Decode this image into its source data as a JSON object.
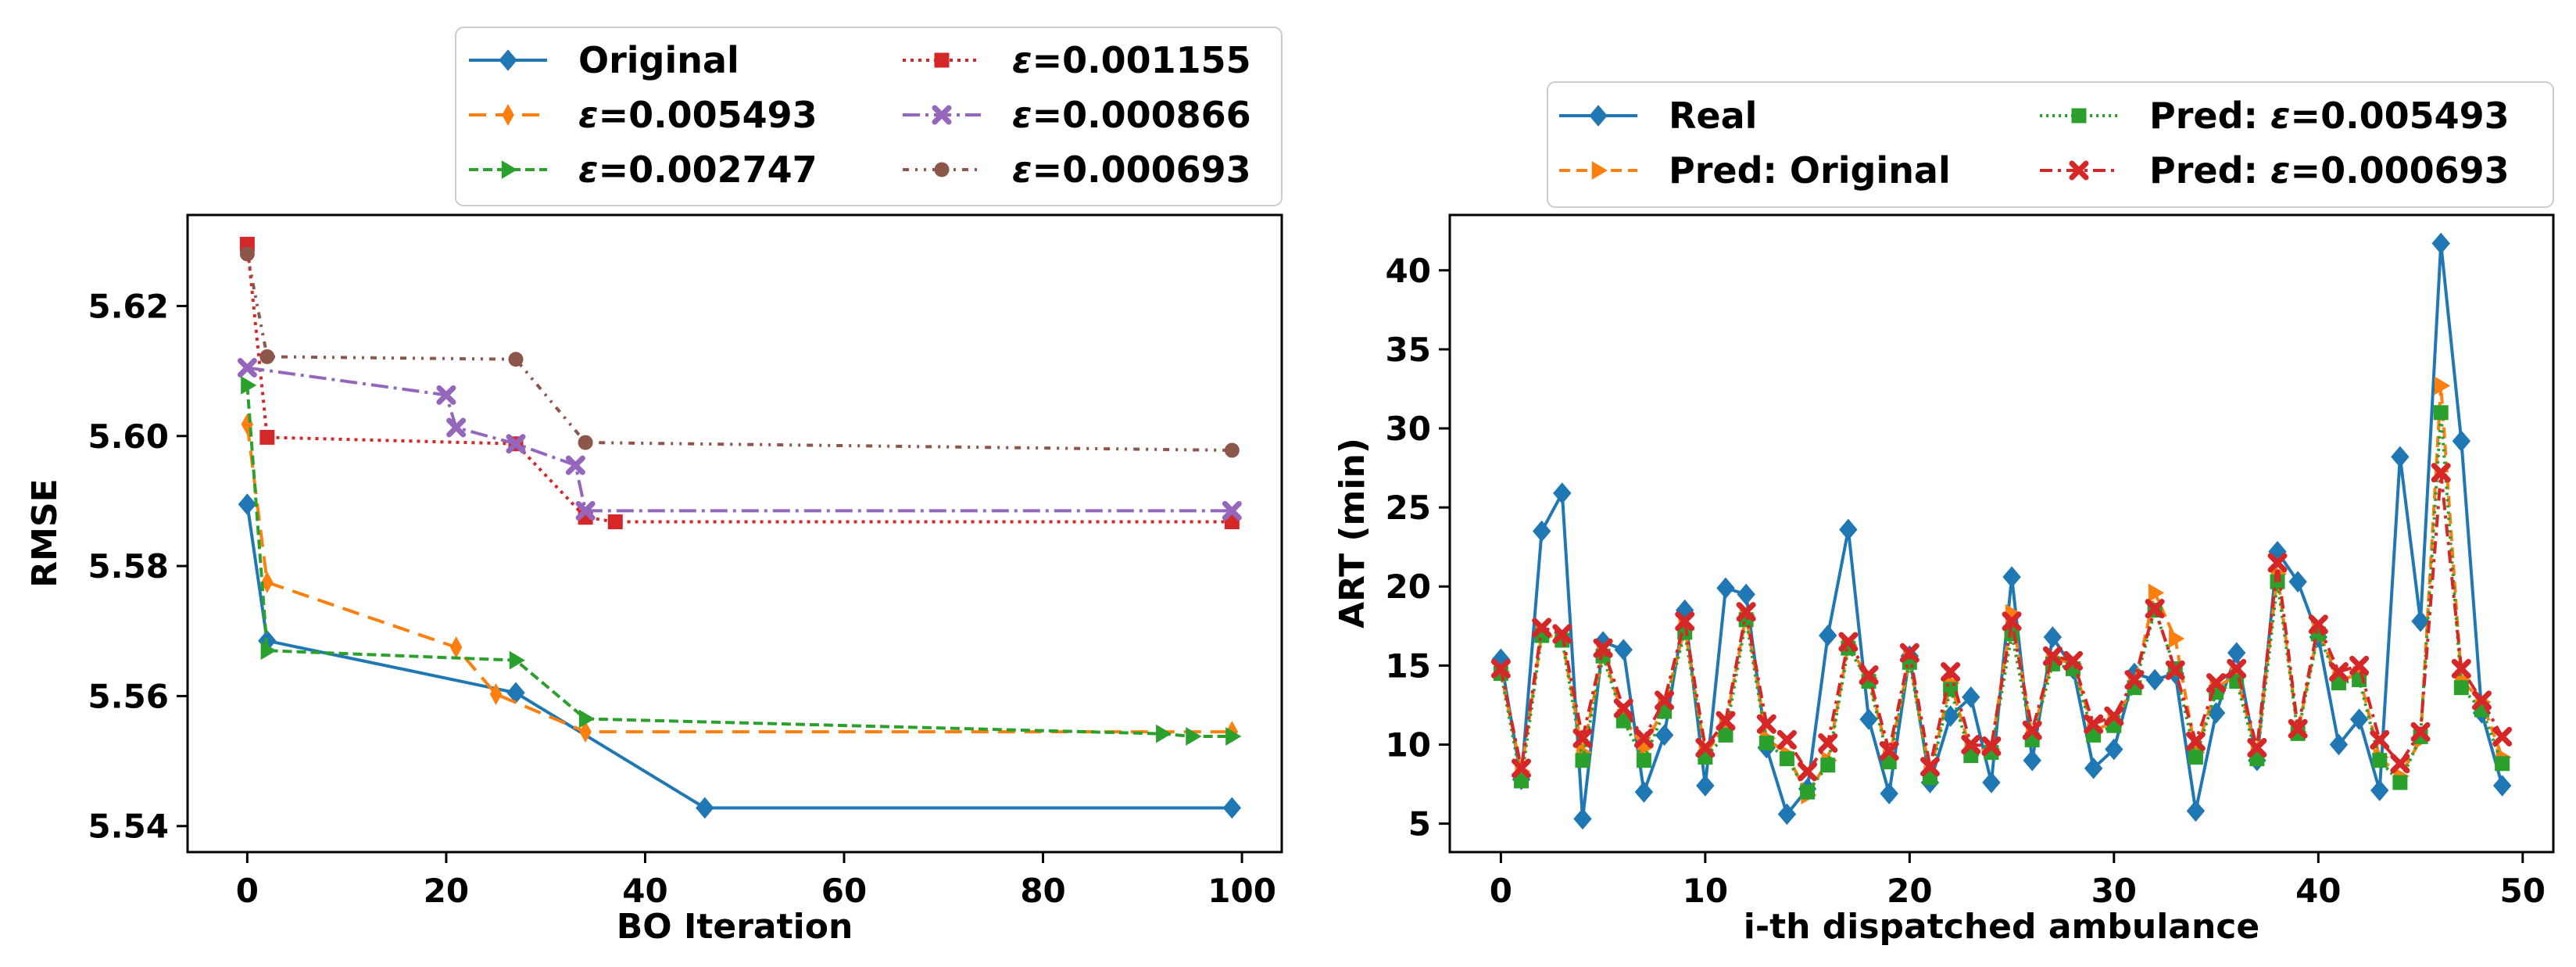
{
  "chart_data": [
    {
      "type": "line",
      "title": "",
      "xlabel": "BO Iteration",
      "ylabel": "RMSE",
      "xlim": [
        -6,
        104
      ],
      "ylim": [
        5.536,
        5.634
      ],
      "xticks": [
        0,
        20,
        40,
        60,
        80,
        100
      ],
      "yticks": [
        5.54,
        5.56,
        5.58,
        5.6,
        5.62
      ],
      "legend_position": "top",
      "legend_columns": 2,
      "series": [
        {
          "name": "Original",
          "label": "Original",
          "color": "#1f77b4",
          "dash": "",
          "marker": "diamond",
          "x": [
            0,
            2,
            27,
            46,
            99
          ],
          "y": [
            5.5895,
            5.5685,
            5.5605,
            5.5428,
            5.5428
          ]
        },
        {
          "name": "eps_0.005493",
          "label_symbol": "ε",
          "label_value": "=0.005493",
          "color": "#ff7f0e",
          "dash": "22,12",
          "marker": "thin_diamond",
          "x": [
            0,
            2,
            21,
            25,
            34,
            99
          ],
          "y": [
            5.6018,
            5.5775,
            5.5675,
            5.5603,
            5.5545,
            5.5545
          ]
        },
        {
          "name": "eps_0.002747",
          "label_symbol": "ε",
          "label_value": "=0.002747",
          "color": "#2ca02c",
          "dash": "12,6",
          "marker": "triangle_right",
          "x": [
            0,
            2,
            27,
            34,
            92,
            95,
            99
          ],
          "y": [
            5.6078,
            5.567,
            5.5655,
            5.5565,
            5.5542,
            5.5538,
            5.5538
          ]
        },
        {
          "name": "eps_0.001155",
          "label_symbol": "ε",
          "label_value": "=0.001155",
          "color": "#d62728",
          "dash": "4,6",
          "marker": "square",
          "x": [
            0,
            2,
            27,
            34,
            37,
            99
          ],
          "y": [
            5.6295,
            5.5998,
            5.5988,
            5.5875,
            5.5868,
            5.5868
          ]
        },
        {
          "name": "eps_0.000866",
          "label_symbol": "ε",
          "label_value": "=0.000866",
          "color": "#9467bd",
          "dash": "22,7,4,7",
          "marker": "x",
          "x": [
            0,
            20,
            21,
            27,
            33,
            34,
            99
          ],
          "y": [
            5.6105,
            5.6063,
            5.6013,
            5.5988,
            5.5955,
            5.5885,
            5.5885
          ]
        },
        {
          "name": "eps_0.000693",
          "label_symbol": "ε",
          "label_value": "=0.000693",
          "color": "#8c564b",
          "dash": "8,8,3,8,3,8",
          "marker": "circle",
          "x": [
            0,
            2,
            27,
            34,
            99
          ],
          "y": [
            5.628,
            5.6122,
            5.6118,
            5.599,
            5.5978
          ]
        }
      ]
    },
    {
      "type": "line",
      "title": "",
      "xlabel": "i-th dispatched ambulance",
      "ylabel": "ART (min)",
      "xlim": [
        -2.5,
        51.5
      ],
      "ylim": [
        3.2,
        43.5
      ],
      "xticks": [
        0,
        10,
        20,
        30,
        40,
        50
      ],
      "yticks": [
        5,
        10,
        15,
        20,
        25,
        30,
        35,
        40
      ],
      "legend_position": "top",
      "legend_columns": 2,
      "x": [
        0,
        1,
        2,
        3,
        4,
        5,
        6,
        7,
        8,
        9,
        10,
        11,
        12,
        13,
        14,
        15,
        16,
        17,
        18,
        19,
        20,
        21,
        22,
        23,
        24,
        25,
        26,
        27,
        28,
        29,
        30,
        31,
        32,
        33,
        34,
        35,
        36,
        37,
        38,
        39,
        40,
        41,
        42,
        43,
        44,
        45,
        46,
        47,
        48,
        49
      ],
      "series": [
        {
          "name": "Real",
          "label": "Real",
          "color": "#1f77b4",
          "dash": "",
          "marker": "diamond",
          "values": [
            15.4,
            7.8,
            23.5,
            25.9,
            5.3,
            16.5,
            16.0,
            7.0,
            10.6,
            18.5,
            7.4,
            19.9,
            19.5,
            9.8,
            5.6,
            7.2,
            16.9,
            23.6,
            11.6,
            6.9,
            15.6,
            7.6,
            11.8,
            13.0,
            7.6,
            20.6,
            9.0,
            16.8,
            14.8,
            8.5,
            9.7,
            14.5,
            14.1,
            14.5,
            5.8,
            12.0,
            15.8,
            9.0,
            22.2,
            20.3,
            16.8,
            10.0,
            11.6,
            7.1,
            28.2,
            17.8,
            41.7,
            29.2,
            12.0,
            7.4
          ]
        },
        {
          "name": "Pred: Original",
          "label": "Pred: Original",
          "color": "#ff7f0e",
          "dash": "14,8",
          "marker": "triangle_right",
          "values": [
            14.6,
            8.3,
            17.0,
            16.7,
            9.5,
            15.8,
            11.7,
            9.8,
            12.4,
            17.4,
            9.4,
            11.2,
            18.2,
            10.4,
            9.4,
            6.8,
            9.0,
            16.3,
            14.2,
            9.1,
            15.4,
            8.1,
            13.9,
            9.6,
            9.7,
            18.3,
            10.5,
            15.5,
            15.1,
            10.9,
            11.4,
            13.8,
            19.6,
            16.7,
            9.5,
            13.6,
            14.4,
            9.4,
            20.8,
            10.8,
            17.2,
            14.1,
            14.4,
            9.2,
            8.0,
            10.3,
            32.7,
            14.1,
            12.7,
            9.2
          ]
        },
        {
          "name": "Pred: eps_0.005493",
          "label_prefix": "Pred: ",
          "label_symbol": "ε",
          "label_value": "=0.005493",
          "color": "#2ca02c",
          "dash": "3,5",
          "marker": "square",
          "values": [
            14.5,
            7.7,
            16.9,
            16.6,
            9.0,
            15.6,
            11.5,
            9.0,
            12.1,
            17.1,
            9.2,
            10.6,
            17.9,
            10.1,
            9.1,
            7.0,
            8.7,
            16.1,
            14.0,
            8.9,
            15.2,
            7.9,
            13.5,
            9.3,
            9.5,
            17.0,
            10.3,
            15.1,
            14.8,
            10.6,
            11.2,
            13.6,
            18.5,
            14.8,
            9.2,
            13.3,
            14.0,
            9.1,
            20.3,
            10.7,
            17.0,
            13.9,
            14.1,
            9.0,
            7.6,
            10.5,
            31.0,
            13.6,
            12.2,
            8.8
          ]
        },
        {
          "name": "Pred: eps_0.000693",
          "label_prefix": "Pred: ",
          "label_symbol": "ε",
          "label_value": "=0.000693",
          "color": "#d62728",
          "dash": "16,7,4,7",
          "marker": "x",
          "values": [
            14.8,
            8.5,
            17.4,
            17.0,
            10.4,
            16.1,
            12.3,
            10.4,
            12.8,
            17.8,
            9.8,
            11.5,
            18.4,
            11.3,
            10.3,
            8.3,
            10.1,
            16.5,
            14.4,
            9.6,
            15.8,
            8.6,
            14.6,
            10.0,
            9.9,
            17.8,
            10.9,
            15.6,
            15.3,
            11.3,
            11.8,
            14.1,
            18.6,
            14.7,
            10.2,
            13.9,
            14.8,
            9.8,
            21.5,
            11.0,
            17.6,
            14.6,
            15.0,
            10.3,
            8.8,
            10.8,
            27.2,
            14.8,
            12.8,
            10.5
          ]
        }
      ]
    }
  ]
}
